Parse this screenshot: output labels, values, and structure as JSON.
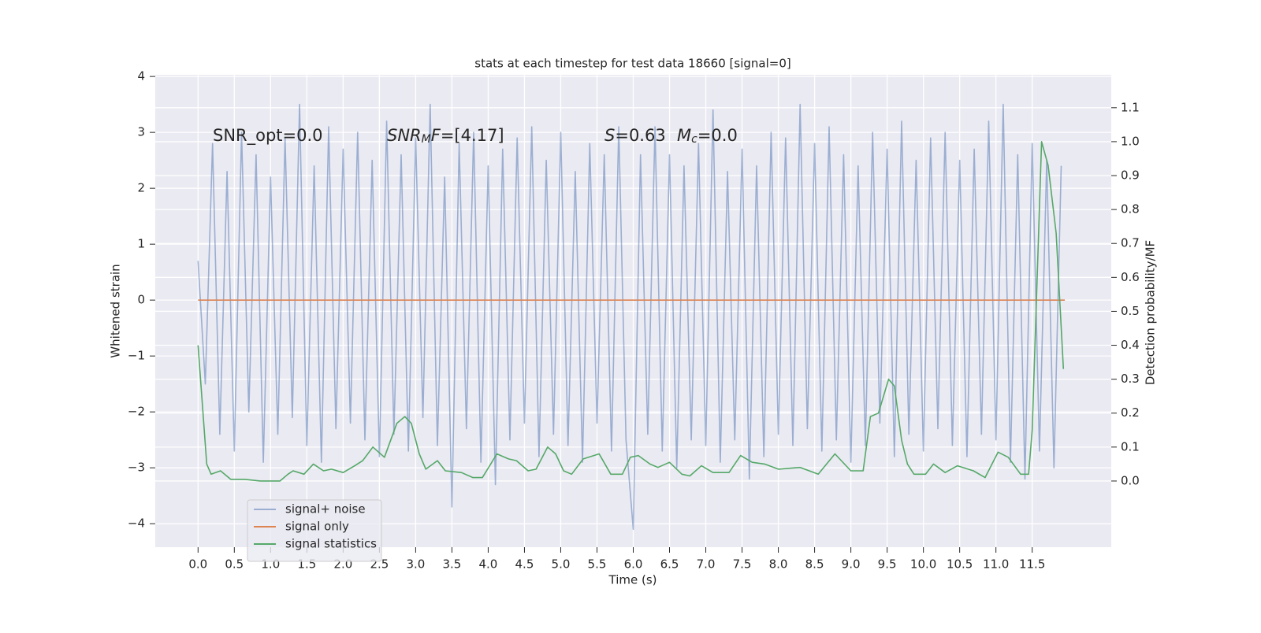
{
  "chart_data": {
    "type": "line",
    "title": "stats at each timestep for test data 18660 [signal=0]",
    "xlabel": "Time (s)",
    "ylabel": "Whitened strain",
    "y2label": "Detection probability/MF",
    "xlim": [
      -0.59,
      12.59
    ],
    "ylim": [
      -4.42,
      4.03
    ],
    "y2lim": [
      -0.195,
      1.197
    ],
    "xticks": [
      {
        "value": 0,
        "label": "0.0"
      },
      0.5,
      {
        "value": 1,
        "label": "1.0"
      },
      1.5,
      {
        "value": 2,
        "label": "2.0"
      },
      2.5,
      {
        "value": 3,
        "label": "3.0"
      },
      3.5,
      {
        "value": 4,
        "label": "4.0"
      },
      4.5,
      {
        "value": 5,
        "label": "5.0"
      },
      5.5,
      {
        "value": 6,
        "label": "6.0"
      },
      6.5,
      {
        "value": 7,
        "label": "7.0"
      },
      7.5,
      {
        "value": 8,
        "label": "8.0"
      },
      8.5,
      {
        "value": 9,
        "label": "9.0"
      },
      9.5,
      {
        "value": 10,
        "label": "10.0"
      },
      10.5,
      {
        "value": 11,
        "label": "11.0"
      },
      11.5
    ],
    "yticks": [
      {
        "value": -4,
        "label": "−4"
      },
      {
        "value": -3,
        "label": "−3"
      },
      {
        "value": -2,
        "label": "−2"
      },
      {
        "value": -1,
        "label": "−1"
      },
      0,
      1,
      2,
      3,
      4
    ],
    "y2ticks": [
      {
        "value": 0,
        "label": "0.0"
      },
      0.1,
      0.2,
      0.3,
      0.4,
      0.5,
      0.6,
      0.7,
      0.8,
      0.9,
      {
        "value": 1,
        "label": "1.0"
      },
      1.1
    ],
    "grid": true,
    "legend": "lower left",
    "annotations": [
      {
        "parts": [
          {
            "text": "SNR_opt=0.0"
          }
        ]
      },
      {
        "parts": [
          {
            "text": "SNR",
            "italic": true
          },
          {
            "text": "M",
            "italic": true,
            "sub": true
          },
          {
            "text": "F",
            "italic": true
          },
          {
            "text": "=[4.17]"
          }
        ]
      },
      {
        "parts": [
          {
            "text": "S",
            "italic": true
          },
          {
            "text": "=0.63"
          }
        ]
      },
      {
        "parts": [
          {
            "text": "M",
            "italic": true
          },
          {
            "text": "c",
            "italic": true,
            "sub": true
          },
          {
            "text": "=0.0"
          }
        ]
      }
    ],
    "series": [
      {
        "name": "signal+ noise",
        "color": "#4c72b0",
        "alpha": 0.5,
        "x": [
          0,
          0.1,
          0.2,
          0.3,
          0.4,
          0.5,
          0.6,
          0.7,
          0.8,
          0.9,
          1,
          1.1,
          1.2,
          1.3,
          1.4,
          1.5,
          1.6,
          1.7,
          1.8,
          1.9,
          2,
          2.1,
          2.2,
          2.3,
          2.4,
          2.5,
          2.6,
          2.7,
          2.8,
          2.9,
          3,
          3.1,
          3.2,
          3.3,
          3.4,
          3.5,
          3.6,
          3.7,
          3.8,
          3.9,
          4,
          4.1,
          4.2,
          4.3,
          4.4,
          4.5,
          4.6,
          4.7,
          4.8,
          4.9,
          5,
          5.1,
          5.2,
          5.3,
          5.4,
          5.5,
          5.6,
          5.7,
          5.8,
          5.9,
          6,
          6.1,
          6.2,
          6.3,
          6.4,
          6.5,
          6.6,
          6.7,
          6.8,
          6.9,
          7,
          7.1,
          7.2,
          7.3,
          7.4,
          7.5,
          7.6,
          7.7,
          7.8,
          7.9,
          8,
          8.1,
          8.2,
          8.3,
          8.4,
          8.5,
          8.6,
          8.7,
          8.8,
          8.9,
          9,
          9.1,
          9.2,
          9.3,
          9.4,
          9.5,
          9.6,
          9.7,
          9.8,
          9.9,
          10,
          10.1,
          10.2,
          10.3,
          10.4,
          10.5,
          10.6,
          10.7,
          10.8,
          10.9,
          11,
          11.1,
          11.2,
          11.3,
          11.4,
          11.5,
          11.6,
          11.7,
          11.8,
          11.9
        ],
        "values": [
          0.7,
          -1.5,
          2.8,
          -2.4,
          2.3,
          -2.7,
          3.0,
          -2.0,
          2.6,
          -2.9,
          2.2,
          -2.4,
          2.9,
          -2.1,
          3.5,
          -2.6,
          2.4,
          -2.9,
          3.1,
          -2.3,
          2.7,
          -2.2,
          3.0,
          -2.5,
          2.5,
          -2.8,
          3.2,
          -2.4,
          2.6,
          -2.7,
          2.9,
          -2.1,
          3.5,
          -2.6,
          2.2,
          -3.7,
          2.8,
          -2.3,
          3.0,
          -2.9,
          2.4,
          -3.3,
          2.7,
          -2.5,
          2.9,
          -2.2,
          3.1,
          -2.8,
          2.5,
          -2.4,
          3.0,
          -2.6,
          2.3,
          -2.9,
          2.8,
          -2.2,
          2.6,
          -2.7,
          3.1,
          -2.5,
          -4.1,
          2.6,
          -2.4,
          3.1,
          -2.7,
          2.6,
          -3.0,
          2.4,
          -2.5,
          2.8,
          -2.6,
          3.4,
          -2.9,
          2.3,
          -2.5,
          2.7,
          -3.2,
          2.4,
          -2.8,
          3.0,
          -2.4,
          2.9,
          -2.6,
          3.5,
          -2.3,
          2.8,
          -2.7,
          3.1,
          -2.5,
          2.6,
          -2.9,
          2.4,
          -2.6,
          3.0,
          -2.2,
          2.7,
          -2.8,
          3.2,
          -2.4,
          2.5,
          -2.7,
          2.9,
          -2.3,
          3.0,
          -2.6,
          2.5,
          -2.8,
          2.7,
          -2.4,
          3.2,
          -2.5,
          3.5,
          -2.9,
          2.6,
          -3.2,
          2.8,
          -2.7,
          2.5,
          -3.0,
          2.4
        ]
      },
      {
        "name": "signal only",
        "color": "#dd8452",
        "x": [
          0,
          11.95
        ],
        "values": [
          0,
          0
        ]
      },
      {
        "name": "signal statistics",
        "color": "#55a868",
        "axis": "y2",
        "x": [
          0,
          0.12,
          0.18,
          0.31,
          0.45,
          0.64,
          0.86,
          1.13,
          1.24,
          1.31,
          1.46,
          1.59,
          1.73,
          1.84,
          2.0,
          2.16,
          2.27,
          2.41,
          2.57,
          2.74,
          2.85,
          2.94,
          3.05,
          3.14,
          3.3,
          3.41,
          3.63,
          3.79,
          3.92,
          4.12,
          4.28,
          4.39,
          4.55,
          4.66,
          4.82,
          4.93,
          5.04,
          5.15,
          5.31,
          5.53,
          5.69,
          5.85,
          5.96,
          6.07,
          6.23,
          6.34,
          6.5,
          6.67,
          6.78,
          6.94,
          7.1,
          7.32,
          7.48,
          7.64,
          7.81,
          8.0,
          8.3,
          8.55,
          8.78,
          9.0,
          9.17,
          9.27,
          9.38,
          9.52,
          9.6,
          9.7,
          9.78,
          9.87,
          10.03,
          10.14,
          10.3,
          10.47,
          10.69,
          10.85,
          11.03,
          11.17,
          11.34,
          11.45,
          11.5,
          11.63,
          11.72,
          11.83,
          11.93
        ],
        "values": [
          0.4,
          0.05,
          0.02,
          0.03,
          0.005,
          0.005,
          0.0,
          0.0,
          0.02,
          0.03,
          0.02,
          0.05,
          0.03,
          0.035,
          0.025,
          0.045,
          0.06,
          0.1,
          0.07,
          0.17,
          0.19,
          0.17,
          0.08,
          0.035,
          0.06,
          0.03,
          0.025,
          0.01,
          0.01,
          0.08,
          0.065,
          0.06,
          0.03,
          0.035,
          0.1,
          0.08,
          0.03,
          0.02,
          0.065,
          0.08,
          0.02,
          0.02,
          0.07,
          0.075,
          0.05,
          0.04,
          0.055,
          0.02,
          0.015,
          0.045,
          0.025,
          0.025,
          0.075,
          0.055,
          0.05,
          0.035,
          0.04,
          0.02,
          0.08,
          0.03,
          0.03,
          0.19,
          0.2,
          0.3,
          0.28,
          0.12,
          0.05,
          0.02,
          0.02,
          0.05,
          0.025,
          0.045,
          0.03,
          0.01,
          0.085,
          0.07,
          0.02,
          0.02,
          0.15,
          1.0,
          0.93,
          0.73,
          0.33
        ]
      }
    ]
  }
}
